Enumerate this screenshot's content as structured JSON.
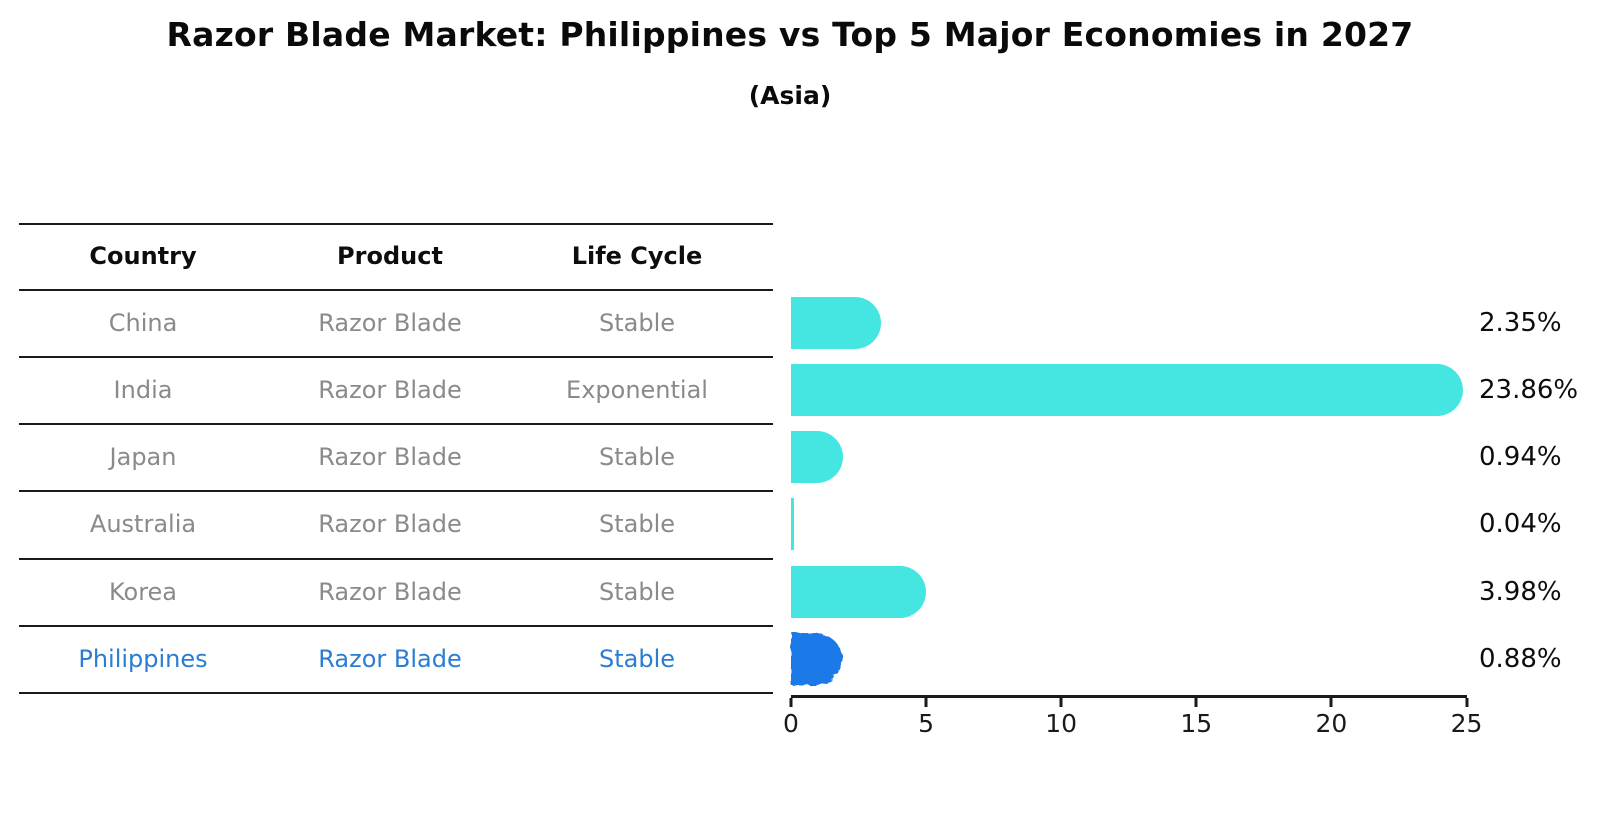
{
  "title": "Razor Blade Market: Philippines vs Top 5 Major Economies in 2027",
  "subtitle": "(Asia)",
  "table": {
    "headers": [
      "Country",
      "Product",
      "Life Cycle"
    ],
    "rows": [
      {
        "country": "China",
        "product": "Razor Blade",
        "life_cycle": "Stable",
        "highlight": false
      },
      {
        "country": "India",
        "product": "Razor Blade",
        "life_cycle": "Exponential",
        "highlight": false
      },
      {
        "country": "Japan",
        "product": "Razor Blade",
        "life_cycle": "Stable",
        "highlight": false
      },
      {
        "country": "Australia",
        "product": "Razor Blade",
        "life_cycle": "Stable",
        "highlight": false
      },
      {
        "country": "Korea",
        "product": "Razor Blade",
        "life_cycle": "Stable",
        "highlight": false
      },
      {
        "country": "Philippines",
        "product": "Razor Blade",
        "life_cycle": "Stable",
        "highlight": true
      }
    ]
  },
  "chart_data": {
    "type": "bar",
    "orientation": "horizontal",
    "title": "Razor Blade Market: Philippines vs Top 5 Major Economies in 2027",
    "subtitle": "(Asia)",
    "categories": [
      "China",
      "India",
      "Japan",
      "Australia",
      "Korea",
      "Philippines"
    ],
    "values": [
      2.35,
      23.86,
      0.94,
      0.04,
      3.98,
      0.88
    ],
    "bar_labels": [
      "2.35%",
      "23.86%",
      "0.94%",
      "0.04%",
      "3.98%",
      "0.88%"
    ],
    "xlabel": "",
    "ylabel": "",
    "xlim": [
      0,
      25
    ],
    "x_ticks": [
      "0",
      "5",
      "10",
      "15",
      "20",
      "25"
    ],
    "grid": false,
    "legend": false,
    "highlight_index": 5,
    "colors": {
      "bar": "#45E6E1",
      "highlight_bar": "#1E7AE8",
      "highlight_text": "#2B7CD3",
      "row_text": "#8A8A8A",
      "header_text": "#0D0D0D",
      "value_text": "#0D0D0D",
      "axis": "#1A1A1A"
    }
  }
}
